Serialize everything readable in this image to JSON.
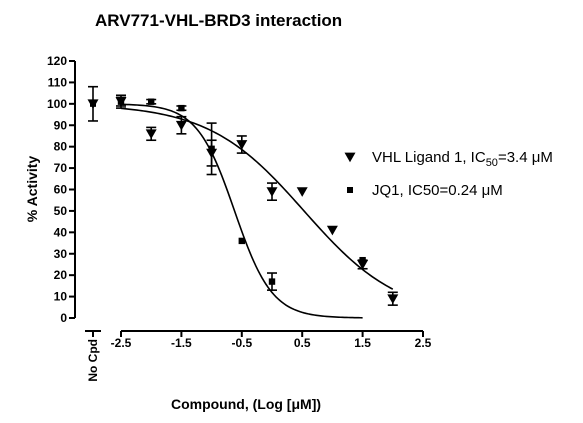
{
  "chart_data": {
    "type": "scatter",
    "title": "ARV771-VHL-BRD3 interaction",
    "xlabel": "Compound, (Log [μM])",
    "ylabel": "% Activity",
    "xlim": [
      -2.5,
      2.5
    ],
    "ylim": [
      0,
      120
    ],
    "x_ticks": [
      "-2.5",
      "-1.5",
      "-0.5",
      "0.5",
      "1.5",
      "2.5"
    ],
    "y_ticks": [
      "0",
      "10",
      "20",
      "30",
      "40",
      "50",
      "60",
      "70",
      "80",
      "90",
      "100",
      "110",
      "120"
    ],
    "control": {
      "label": "No Cpd",
      "value": 100,
      "error": 8
    },
    "series": [
      {
        "name": "VHL Ligand 1",
        "legend_text": "VHL Ligand 1, IC",
        "legend_sub": "50",
        "legend_suffix": "=3.4 μM",
        "marker": "triangle-down",
        "x": [
          -2.5,
          -2.0,
          -1.5,
          -1.0,
          -0.5,
          0.0,
          0.5,
          1.0,
          1.5,
          2.0
        ],
        "y": [
          101,
          86,
          90,
          77,
          81,
          59,
          59,
          41,
          25,
          9
        ],
        "err": [
          2,
          3,
          4,
          6,
          4,
          4,
          0,
          0,
          2,
          3
        ],
        "fit": {
          "top": 100,
          "bottom": 0,
          "logIC50": 0.53,
          "hill": 0.55
        }
      },
      {
        "name": "JQ1",
        "legend_text": "JQ1, IC50=0.24 μM",
        "marker": "square",
        "x": [
          -2.5,
          -2.0,
          -1.5,
          -1.0,
          -0.5,
          0.0,
          1.5
        ],
        "y": [
          101,
          101,
          98,
          79,
          36,
          17,
          27
        ],
        "err": [
          3,
          1,
          1,
          12,
          0,
          4,
          0
        ],
        "fit": {
          "top": 100,
          "bottom": 0,
          "logIC50": -0.62,
          "hill": 1.4
        }
      }
    ]
  }
}
